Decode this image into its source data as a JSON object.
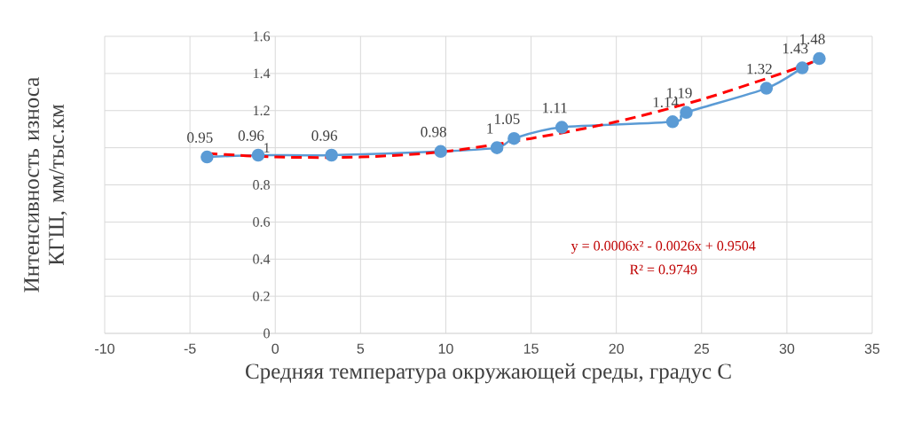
{
  "chart_data": {
    "type": "line",
    "xlabel": "Средняя температура окружающей среды, градус С",
    "ylabel": "Интенсивность износа КГШ, мм/тыс.км",
    "xlim": [
      -10,
      35
    ],
    "xticks": [
      -10,
      -5,
      0,
      5,
      10,
      15,
      20,
      25,
      30,
      35
    ],
    "ylim": [
      0,
      1.6
    ],
    "yticks": [
      0,
      0.2,
      0.4,
      0.6,
      0.8,
      1,
      1.2,
      1.4,
      1.6
    ],
    "grid": true,
    "series": [
      {
        "color": "#5b9bd5",
        "marker": "circle",
        "line_style": "solid",
        "x": [
          -4,
          -1,
          3.3,
          9.7,
          13,
          14,
          16.8,
          23.3,
          24.1,
          28.8,
          30.9,
          31.9
        ],
        "values": [
          0.95,
          0.96,
          0.96,
          0.98,
          1,
          1.05,
          1.11,
          1.14,
          1.19,
          1.32,
          1.43,
          1.48
        ],
        "value_labels": [
          "0.95",
          "0.96",
          "0.96",
          "0.98",
          "1",
          "1.05",
          "1.11",
          "1.14",
          "1.19",
          "1.32",
          "1.43",
          "1.48"
        ]
      },
      {
        "color": "#ff0000",
        "marker": "none",
        "line_style": "dashed",
        "x": [
          -4,
          0,
          5,
          10,
          15,
          20,
          25,
          30,
          32
        ],
        "values": [
          0.97,
          0.95,
          0.95,
          0.98,
          1.05,
          1.14,
          1.26,
          1.41,
          1.48
        ]
      }
    ],
    "annotations": [
      "y = 0.0006x² - 0.0026x + 0.9504",
      "R² = 0.9749"
    ]
  }
}
